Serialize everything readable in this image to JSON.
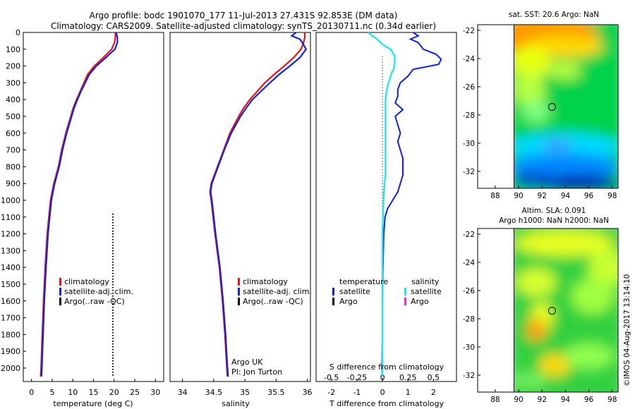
{
  "header": {
    "line1": "Argo profile: bodc 1901070_177 11-Jul-2013 27.431S 92.853E (DM data)",
    "line2": "Climatology: CARS2009. Satellite-adjusted climatology: synTS_20130711.nc (0.34d earlier)"
  },
  "colors": {
    "climatology": "#ee1111",
    "satellite": "#1122dd",
    "argo": "#000000",
    "sal_satellite": "#22e8e8",
    "sal_argo": "#ee22ee"
  },
  "chart_data": [
    {
      "type": "line",
      "id": "temperature",
      "xlabel": "temperature (deg C)",
      "ylabel": "",
      "xlim": [
        -2,
        32
      ],
      "ylim": [
        2080,
        0
      ],
      "xticks": [
        0,
        5,
        10,
        15,
        20,
        25,
        30
      ],
      "xtick_labels": [
        "0",
        "5",
        "10",
        "15",
        "20",
        "25",
        "30"
      ],
      "ytick_labels": [
        "0",
        "100",
        "200",
        "300",
        "400",
        "500",
        "600",
        "700",
        "800",
        "900",
        "1000",
        "1100",
        "1200",
        "1300",
        "1400",
        "1500",
        "1600",
        "1700",
        "1800",
        "1900",
        "2000"
      ],
      "legend": {
        "placement": "lower-left",
        "entries": [
          "climatology",
          "satellite-adj. clim.",
          "Argo(..raw -QC)"
        ]
      },
      "series": [
        {
          "name": "climatology",
          "depth": [
            0,
            30,
            60,
            100,
            150,
            200,
            250,
            300,
            350,
            400,
            450,
            500,
            600,
            700,
            800,
            900,
            1000,
            1200,
            1400,
            1600,
            1800,
            2000,
            2050
          ],
          "values": [
            20.3,
            20.3,
            20.1,
            19.4,
            17.4,
            15.2,
            13.6,
            12.7,
            11.8,
            10.9,
            10.1,
            9.5,
            8.3,
            7.3,
            6.5,
            5.4,
            4.6,
            3.8,
            3.3,
            2.9,
            2.6,
            2.3,
            2.2
          ]
        },
        {
          "name": "satellite-adj. clim.",
          "depth": [
            0,
            30,
            60,
            100,
            150,
            200,
            250,
            300,
            350,
            400,
            450,
            500,
            600,
            700,
            800,
            900,
            1000,
            1200,
            1400,
            1600,
            1800,
            2000,
            2050
          ],
          "values": [
            20.5,
            20.8,
            20.8,
            20.2,
            18.0,
            15.7,
            14.0,
            13.0,
            12.0,
            11.1,
            10.3,
            9.7,
            8.5,
            7.5,
            6.7,
            5.6,
            4.8,
            4.0,
            3.5,
            3.1,
            2.8,
            2.5,
            2.4
          ]
        },
        {
          "name": "Argo(..raw -QC)",
          "depth": [
            1080,
            2050
          ],
          "values": [
            19.7,
            19.7
          ]
        }
      ]
    },
    {
      "type": "line",
      "id": "salinity",
      "xlabel": "salinity",
      "xlim": [
        33.8,
        36.05
      ],
      "ylim": [
        2080,
        0
      ],
      "xticks": [
        34,
        34.5,
        35,
        35.5,
        36
      ],
      "xtick_labels": [
        "34",
        "34.5",
        "35",
        "35.5",
        "36"
      ],
      "legend": {
        "placement": "lower-right",
        "entries": [
          "climatology",
          "satellite-adj. clim.",
          "Argo(..raw -QC)"
        ]
      },
      "annotation": [
        "Argo UK",
        "PI: Jon Turton"
      ],
      "series": [
        {
          "name": "climatology",
          "depth": [
            0,
            30,
            60,
            100,
            150,
            200,
            250,
            300,
            350,
            400,
            450,
            500,
            600,
            700,
            800,
            900,
            950,
            1000,
            1200,
            1400,
            1600,
            1800,
            2000,
            2050
          ],
          "values": [
            35.96,
            35.96,
            35.94,
            35.9,
            35.78,
            35.63,
            35.47,
            35.32,
            35.2,
            35.08,
            34.98,
            34.9,
            34.76,
            34.66,
            34.56,
            34.46,
            34.44,
            34.46,
            34.52,
            34.59,
            34.64,
            34.68,
            34.71,
            34.72
          ]
        },
        {
          "name": "satellite-adj. clim.",
          "depth": [
            0,
            20,
            40,
            60,
            100,
            150,
            200,
            250,
            300,
            350,
            400,
            450,
            500,
            600,
            700,
            800,
            900,
            950,
            1000,
            1200,
            1400,
            1600,
            1800,
            2000,
            2050
          ],
          "values": [
            35.82,
            35.75,
            35.88,
            35.92,
            35.98,
            35.88,
            35.72,
            35.55,
            35.4,
            35.26,
            35.12,
            35.02,
            34.93,
            34.78,
            34.67,
            34.57,
            34.47,
            34.45,
            34.47,
            34.53,
            34.6,
            34.65,
            34.69,
            34.72,
            34.73
          ]
        }
      ]
    },
    {
      "type": "line",
      "id": "differences",
      "xlabel": "T difference from climatology",
      "top_label": "S difference from climatology",
      "xlim": [
        -2.6,
        2.9
      ],
      "ylim": [
        2080,
        0
      ],
      "xticks": [
        -2,
        -1,
        0,
        1,
        2
      ],
      "xtick_labels": [
        "-2",
        "-1",
        "0",
        "1",
        "2"
      ],
      "sticks": [
        -0.5,
        -0.25,
        0,
        0.25,
        0.5
      ],
      "stick_labels": [
        "-0.5",
        "-0.25",
        "0",
        "0.25",
        "0.5"
      ],
      "legend": {
        "placement": "lower-center",
        "groups": [
          {
            "title": "temperature",
            "entries": [
              "satellite",
              "Argo"
            ]
          },
          {
            "title": "salinity",
            "entries": [
              "satellite",
              "Argo"
            ]
          }
        ]
      },
      "series": [
        {
          "name": "temperature satellite",
          "depth": [
            0,
            20,
            40,
            60,
            80,
            100,
            130,
            160,
            190,
            220,
            260,
            300,
            340,
            380,
            420,
            460,
            500,
            550,
            600,
            650,
            700,
            750,
            800,
            850,
            900,
            950,
            1000,
            1050,
            1100,
            1200,
            1400,
            1600,
            1800,
            2000,
            2050
          ],
          "values": [
            1.2,
            1.4,
            1.1,
            1.4,
            1.5,
            1.6,
            2.1,
            2.3,
            2.2,
            1.2,
            1.0,
            0.7,
            0.6,
            0.6,
            0.5,
            0.8,
            0.5,
            0.6,
            0.7,
            0.6,
            0.7,
            0.8,
            0.8,
            0.8,
            0.7,
            0.6,
            0.4,
            0.2,
            0.1,
            0.05,
            0.02,
            0.0,
            0.0,
            -0.02,
            0.0
          ]
        },
        {
          "name": "salinity satellite",
          "depth": [
            0,
            20,
            40,
            60,
            80,
            100,
            140,
            180,
            220,
            240,
            260,
            300,
            350,
            400,
            450,
            500,
            600,
            700,
            800,
            850,
            900,
            1000,
            1200,
            1500,
            1800,
            2000,
            2050
          ],
          "values": [
            -0.14,
            -0.1,
            -0.05,
            -0.02,
            0.02,
            0.08,
            0.12,
            0.12,
            0.11,
            0.09,
            0.08,
            0.06,
            0.04,
            0.03,
            0.03,
            0.03,
            0.03,
            0.03,
            0.03,
            0.03,
            0.02,
            0.01,
            0.0,
            0.0,
            0.0,
            0.0,
            0.0
          ]
        }
      ]
    },
    {
      "type": "heatmap",
      "id": "sst-map",
      "title": "sat. SST: 20.6  Argo: NaN",
      "xlim": [
        86.5,
        98.5
      ],
      "ylim": [
        -33.2,
        -21.6
      ],
      "xticks": [
        88,
        90,
        92,
        94,
        96,
        98
      ],
      "yticks": [
        -22,
        -24,
        -26,
        -28,
        -30,
        -32
      ],
      "xtick_labels": [
        "88",
        "90",
        "92",
        "94",
        "96",
        "98"
      ],
      "ytick_labels": [
        "-22",
        "-24",
        "-26",
        "-28",
        "-30",
        "-32"
      ],
      "marker": {
        "lon": 92.853,
        "lat": -27.431
      },
      "data_lon_range": [
        90,
        98.5
      ]
    },
    {
      "type": "heatmap",
      "id": "sla-map",
      "title": [
        "Altim. SLA: 0.091",
        "Argo h1000: NaN h2000: NaN"
      ],
      "xlim": [
        86.5,
        98.5
      ],
      "ylim": [
        -33.2,
        -21.6
      ],
      "xticks": [
        88,
        90,
        92,
        94,
        96,
        98
      ],
      "yticks": [
        -22,
        -24,
        -26,
        -28,
        -30,
        -32
      ],
      "xtick_labels": [
        "88",
        "90",
        "92",
        "94",
        "96",
        "98"
      ],
      "ytick_labels": [
        "-22",
        "-24",
        "-26",
        "-28",
        "-30",
        "-32"
      ],
      "marker": {
        "lon": 92.853,
        "lat": -27.431
      },
      "data_lon_range": [
        90,
        98.5
      ]
    }
  ],
  "footer_stamp": "©IMOS 04-Aug-2017 13:14:10"
}
